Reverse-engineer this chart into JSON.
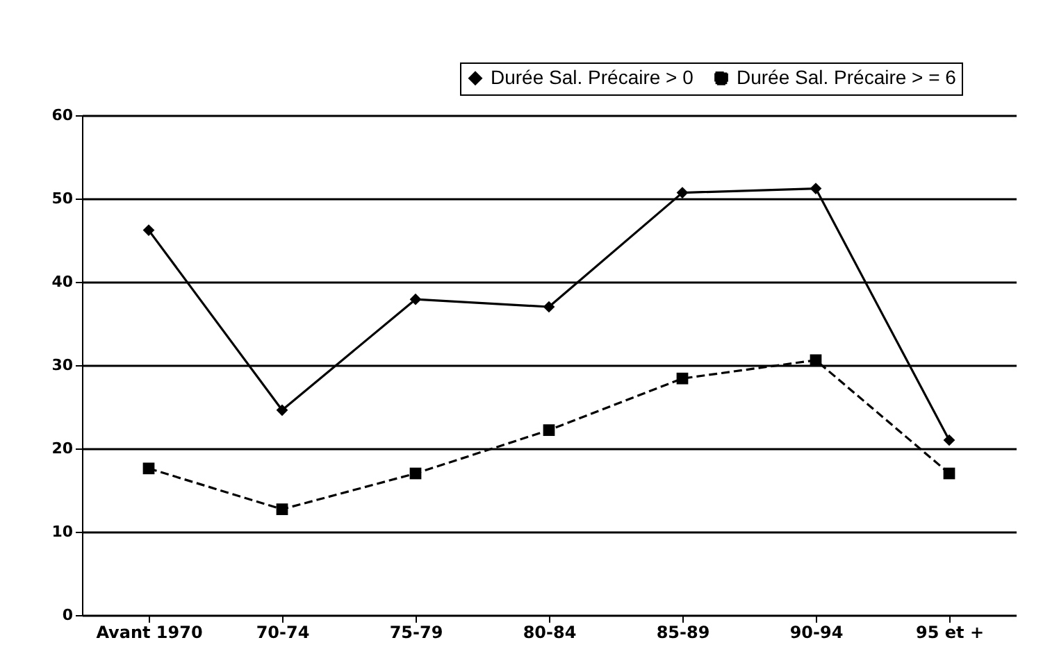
{
  "chart_data": {
    "type": "line",
    "categories": [
      "Avant 1970",
      "70-74",
      "75-79",
      "80-84",
      "85-89",
      "90-94",
      "95 et +"
    ],
    "series": [
      {
        "name": "Durée Sal. Précaire > 0",
        "color": "#000000",
        "marker": "diamond",
        "line_style": "solid",
        "values": [
          46.2,
          24.6,
          37.9,
          37.0,
          50.7,
          51.2,
          21.0
        ]
      },
      {
        "name": "Durée Sal. Précaire > = 6",
        "color": "#000000",
        "marker": "square",
        "line_style": "dashed",
        "values": [
          17.6,
          12.7,
          17.0,
          22.2,
          28.4,
          30.6,
          17.0
        ]
      }
    ],
    "ylim": [
      0,
      60
    ],
    "yticks": [
      0,
      10,
      20,
      30,
      40,
      50,
      60
    ],
    "grid": "y",
    "legend": "top right"
  }
}
